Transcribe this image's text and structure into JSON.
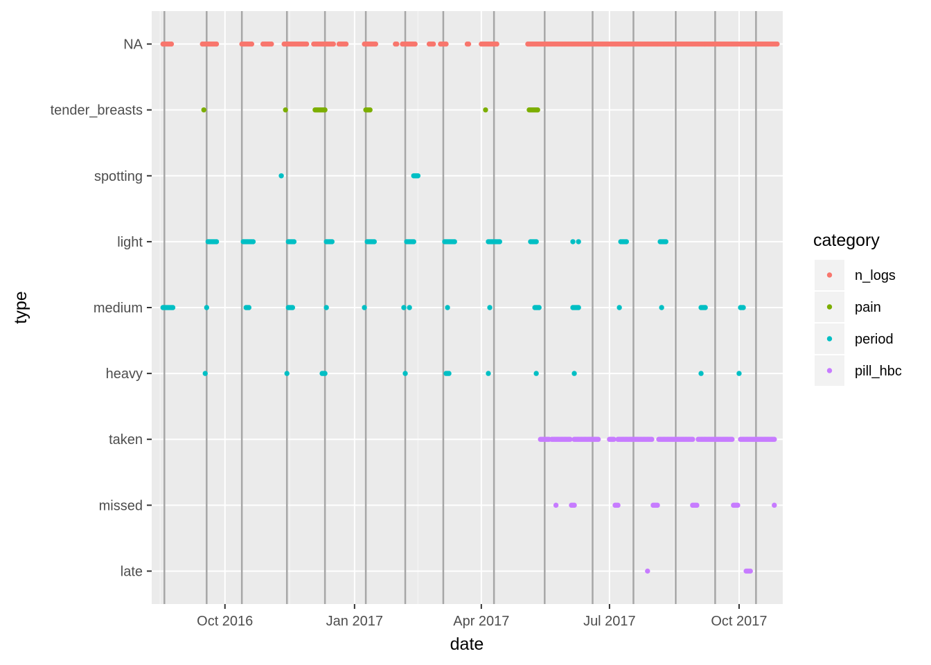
{
  "chart_data": {
    "type": "scatter",
    "title": "",
    "xlabel": "date",
    "ylabel": "type",
    "x_range": [
      "2016-08-10",
      "2017-11-01"
    ],
    "x_ticks": [
      {
        "date": "2016-10-01",
        "label": "Oct 2016"
      },
      {
        "date": "2017-01-01",
        "label": "Jan 2017"
      },
      {
        "date": "2017-04-01",
        "label": "Apr 2017"
      },
      {
        "date": "2017-07-01",
        "label": "Jul 2017"
      },
      {
        "date": "2017-10-01",
        "label": "Oct 2017"
      }
    ],
    "categories": [
      "NA",
      "tender_breasts",
      "spotting",
      "light",
      "medium",
      "heavy",
      "taken",
      "missed",
      "late"
    ],
    "grid": true,
    "legend_position": "right",
    "reference_lines": [
      "2016-08-19",
      "2016-09-18",
      "2016-10-13",
      "2016-11-14",
      "2016-12-11",
      "2017-01-09",
      "2017-02-06",
      "2017-03-05",
      "2017-04-10",
      "2017-05-16",
      "2017-06-19",
      "2017-07-18",
      "2017-08-17",
      "2017-09-14",
      "2017-10-13"
    ],
    "legend": {
      "title": "category",
      "entries": [
        {
          "name": "n_logs",
          "color": "#F8766D"
        },
        {
          "name": "pain",
          "color": "#7CAE00"
        },
        {
          "name": "period",
          "color": "#00BFC4"
        },
        {
          "name": "pill_hbc",
          "color": "#C77CFF"
        }
      ]
    },
    "series": [
      {
        "name": "n_logs",
        "color": "#F8766D",
        "points": [
          {
            "type": "NA",
            "ranges": [
              [
                "2016-08-18",
                "2016-08-24"
              ],
              [
                "2016-09-15",
                "2016-09-25"
              ],
              [
                "2016-10-13",
                "2016-10-20"
              ],
              [
                "2016-10-28",
                "2016-11-03"
              ],
              [
                "2016-11-12",
                "2016-11-28"
              ],
              [
                "2016-12-03",
                "2016-12-17"
              ],
              [
                "2016-12-21",
                "2016-12-26"
              ],
              [
                "2017-01-08",
                "2017-01-16"
              ],
              [
                "2017-01-30",
                "2017-01-31"
              ],
              [
                "2017-02-04",
                "2017-02-13"
              ],
              [
                "2017-02-23",
                "2017-02-26"
              ],
              [
                "2017-03-03",
                "2017-03-07"
              ],
              [
                "2017-03-22",
                "2017-03-23"
              ],
              [
                "2017-04-01",
                "2017-04-12"
              ],
              [
                "2017-05-04",
                "2017-10-28"
              ]
            ]
          }
        ]
      },
      {
        "name": "pain",
        "color": "#7CAE00",
        "points": [
          {
            "type": "tender_breasts",
            "ranges": [
              [
                "2016-09-16",
                "2016-09-16"
              ],
              [
                "2016-11-13",
                "2016-11-13"
              ],
              [
                "2016-12-04",
                "2016-12-11"
              ],
              [
                "2017-01-09",
                "2017-01-12"
              ],
              [
                "2017-04-04",
                "2017-04-04"
              ],
              [
                "2017-05-05",
                "2017-05-11"
              ]
            ]
          }
        ]
      },
      {
        "name": "period",
        "color": "#00BFC4",
        "points": [
          {
            "type": "spotting",
            "ranges": [
              [
                "2016-11-10",
                "2016-11-10"
              ],
              [
                "2017-02-12",
                "2017-02-15"
              ]
            ]
          },
          {
            "type": "light",
            "ranges": [
              [
                "2016-09-19",
                "2016-09-25"
              ],
              [
                "2016-10-14",
                "2016-10-21"
              ],
              [
                "2016-11-15",
                "2016-11-19"
              ],
              [
                "2016-12-12",
                "2016-12-16"
              ],
              [
                "2017-01-10",
                "2017-01-15"
              ],
              [
                "2017-02-07",
                "2017-02-12"
              ],
              [
                "2017-03-06",
                "2017-03-13"
              ],
              [
                "2017-04-06",
                "2017-04-14"
              ],
              [
                "2017-05-06",
                "2017-05-10"
              ],
              [
                "2017-06-05",
                "2017-06-05"
              ],
              [
                "2017-06-09",
                "2017-06-09"
              ],
              [
                "2017-07-09",
                "2017-07-13"
              ],
              [
                "2017-08-06",
                "2017-08-10"
              ]
            ]
          },
          {
            "type": "medium",
            "ranges": [
              [
                "2016-08-18",
                "2016-08-25"
              ],
              [
                "2016-09-18",
                "2016-09-18"
              ],
              [
                "2016-10-16",
                "2016-10-18"
              ],
              [
                "2016-11-15",
                "2016-11-18"
              ],
              [
                "2016-12-12",
                "2016-12-12"
              ],
              [
                "2017-01-08",
                "2017-01-08"
              ],
              [
                "2017-02-05",
                "2017-02-05"
              ],
              [
                "2017-02-09",
                "2017-02-09"
              ],
              [
                "2017-03-08",
                "2017-03-08"
              ],
              [
                "2017-04-07",
                "2017-04-07"
              ],
              [
                "2017-05-09",
                "2017-05-12"
              ],
              [
                "2017-06-05",
                "2017-06-09"
              ],
              [
                "2017-07-08",
                "2017-07-08"
              ],
              [
                "2017-08-07",
                "2017-08-07"
              ],
              [
                "2017-09-04",
                "2017-09-07"
              ],
              [
                "2017-10-02",
                "2017-10-04"
              ]
            ]
          },
          {
            "type": "heavy",
            "ranges": [
              [
                "2016-09-17",
                "2016-09-17"
              ],
              [
                "2016-11-14",
                "2016-11-14"
              ],
              [
                "2016-12-09",
                "2016-12-11"
              ],
              [
                "2017-02-06",
                "2017-02-06"
              ],
              [
                "2017-03-07",
                "2017-03-09"
              ],
              [
                "2017-04-06",
                "2017-04-06"
              ],
              [
                "2017-05-10",
                "2017-05-10"
              ],
              [
                "2017-06-06",
                "2017-06-06"
              ],
              [
                "2017-09-04",
                "2017-09-04"
              ],
              [
                "2017-10-01",
                "2017-10-01"
              ]
            ]
          }
        ]
      },
      {
        "name": "pill_hbc",
        "color": "#C77CFF",
        "points": [
          {
            "type": "taken",
            "ranges": [
              [
                "2017-05-13",
                "2017-05-19"
              ],
              [
                "2017-05-21",
                "2017-06-03"
              ],
              [
                "2017-06-06",
                "2017-06-23"
              ],
              [
                "2017-07-01",
                "2017-07-04"
              ],
              [
                "2017-07-07",
                "2017-07-31"
              ],
              [
                "2017-08-05",
                "2017-08-29"
              ],
              [
                "2017-09-02",
                "2017-09-26"
              ],
              [
                "2017-10-02",
                "2017-10-26"
              ]
            ]
          },
          {
            "type": "missed",
            "ranges": [
              [
                "2017-05-24",
                "2017-05-24"
              ],
              [
                "2017-06-04",
                "2017-06-06"
              ],
              [
                "2017-07-05",
                "2017-07-07"
              ],
              [
                "2017-08-01",
                "2017-08-04"
              ],
              [
                "2017-08-29",
                "2017-09-01"
              ],
              [
                "2017-09-27",
                "2017-09-30"
              ],
              [
                "2017-10-26",
                "2017-10-26"
              ]
            ]
          },
          {
            "type": "late",
            "ranges": [
              [
                "2017-07-28",
                "2017-07-28"
              ],
              [
                "2017-10-06",
                "2017-10-09"
              ]
            ]
          }
        ]
      }
    ]
  }
}
